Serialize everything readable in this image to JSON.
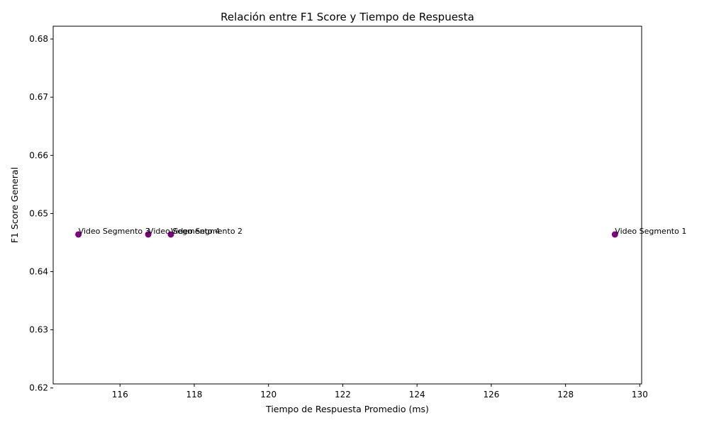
{
  "chart_data": {
    "type": "scatter",
    "title": "Relación entre F1 Score y Tiempo de Respuesta",
    "xlabel": "Tiempo de Respuesta Promedio (ms)",
    "ylabel": "F1 Score General",
    "xlim": [
      114.2,
      130.05
    ],
    "ylim": [
      0.6207,
      0.6822
    ],
    "xticks": [
      116,
      118,
      120,
      122,
      124,
      126,
      128,
      130
    ],
    "yticks": [
      0.62,
      0.63,
      0.64,
      0.65,
      0.66,
      0.67,
      0.68
    ],
    "grid": false,
    "marker_color": "#800080",
    "points": [
      {
        "label": "Video Segmento 1",
        "x": 129.33,
        "y": 0.6464
      },
      {
        "label": "Video Segmento 2",
        "x": 117.37,
        "y": 0.6464
      },
      {
        "label": "Video Segmento 3",
        "x": 114.88,
        "y": 0.6464
      },
      {
        "label": "Video Segmento 4",
        "x": 116.76,
        "y": 0.6464
      }
    ]
  }
}
